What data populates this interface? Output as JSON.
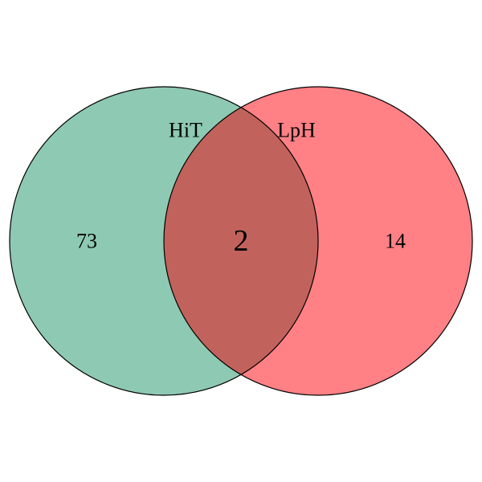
{
  "venn": {
    "sets": [
      {
        "label": "HiT",
        "only_count": "73",
        "color": "#8ec9b3"
      },
      {
        "label": "LpH",
        "only_count": "14",
        "color": "#ff8085"
      }
    ],
    "intersection": {
      "count": "2",
      "color": "#c1635c"
    }
  }
}
